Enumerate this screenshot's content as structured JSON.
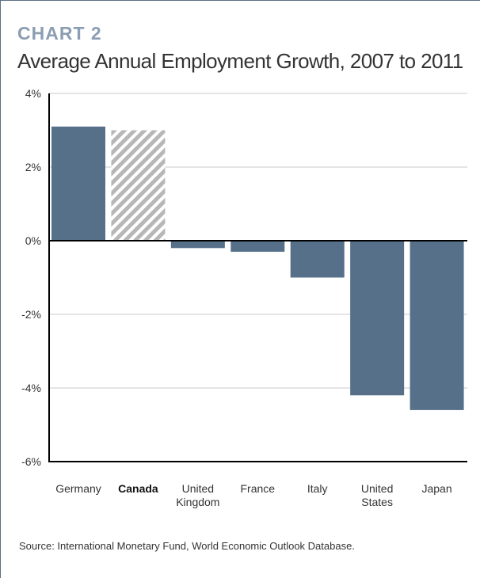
{
  "header": {
    "label": "CHART 2",
    "title": "Average Annual Employment Growth, 2007 to 2011"
  },
  "source": "Source: International Monetary Fund, World Economic Outlook Database.",
  "colors": {
    "bar": "#56708a",
    "highlight_hatch": "#b7b7b7",
    "grid": "#c8c8c8",
    "axis": "#000000",
    "label": "#8a9db3",
    "text": "#333333"
  },
  "chart_data": {
    "type": "bar",
    "categories": [
      [
        "Germany"
      ],
      [
        "Canada"
      ],
      [
        "United",
        "Kingdom"
      ],
      [
        "France"
      ],
      [
        "Italy"
      ],
      [
        "United",
        "States"
      ],
      [
        "Japan"
      ]
    ],
    "values": [
      3.1,
      3.0,
      -0.2,
      -0.3,
      -1.0,
      -4.2,
      -4.6
    ],
    "highlight_index": 1,
    "ylim": [
      -6,
      4
    ],
    "yticks": [
      4,
      2,
      0,
      -2,
      -4,
      -6
    ],
    "ytick_labels": [
      "4%",
      "2%",
      "0%",
      "-2%",
      "-4%",
      "-6%"
    ],
    "grid": true,
    "xlabel": "",
    "ylabel": ""
  }
}
